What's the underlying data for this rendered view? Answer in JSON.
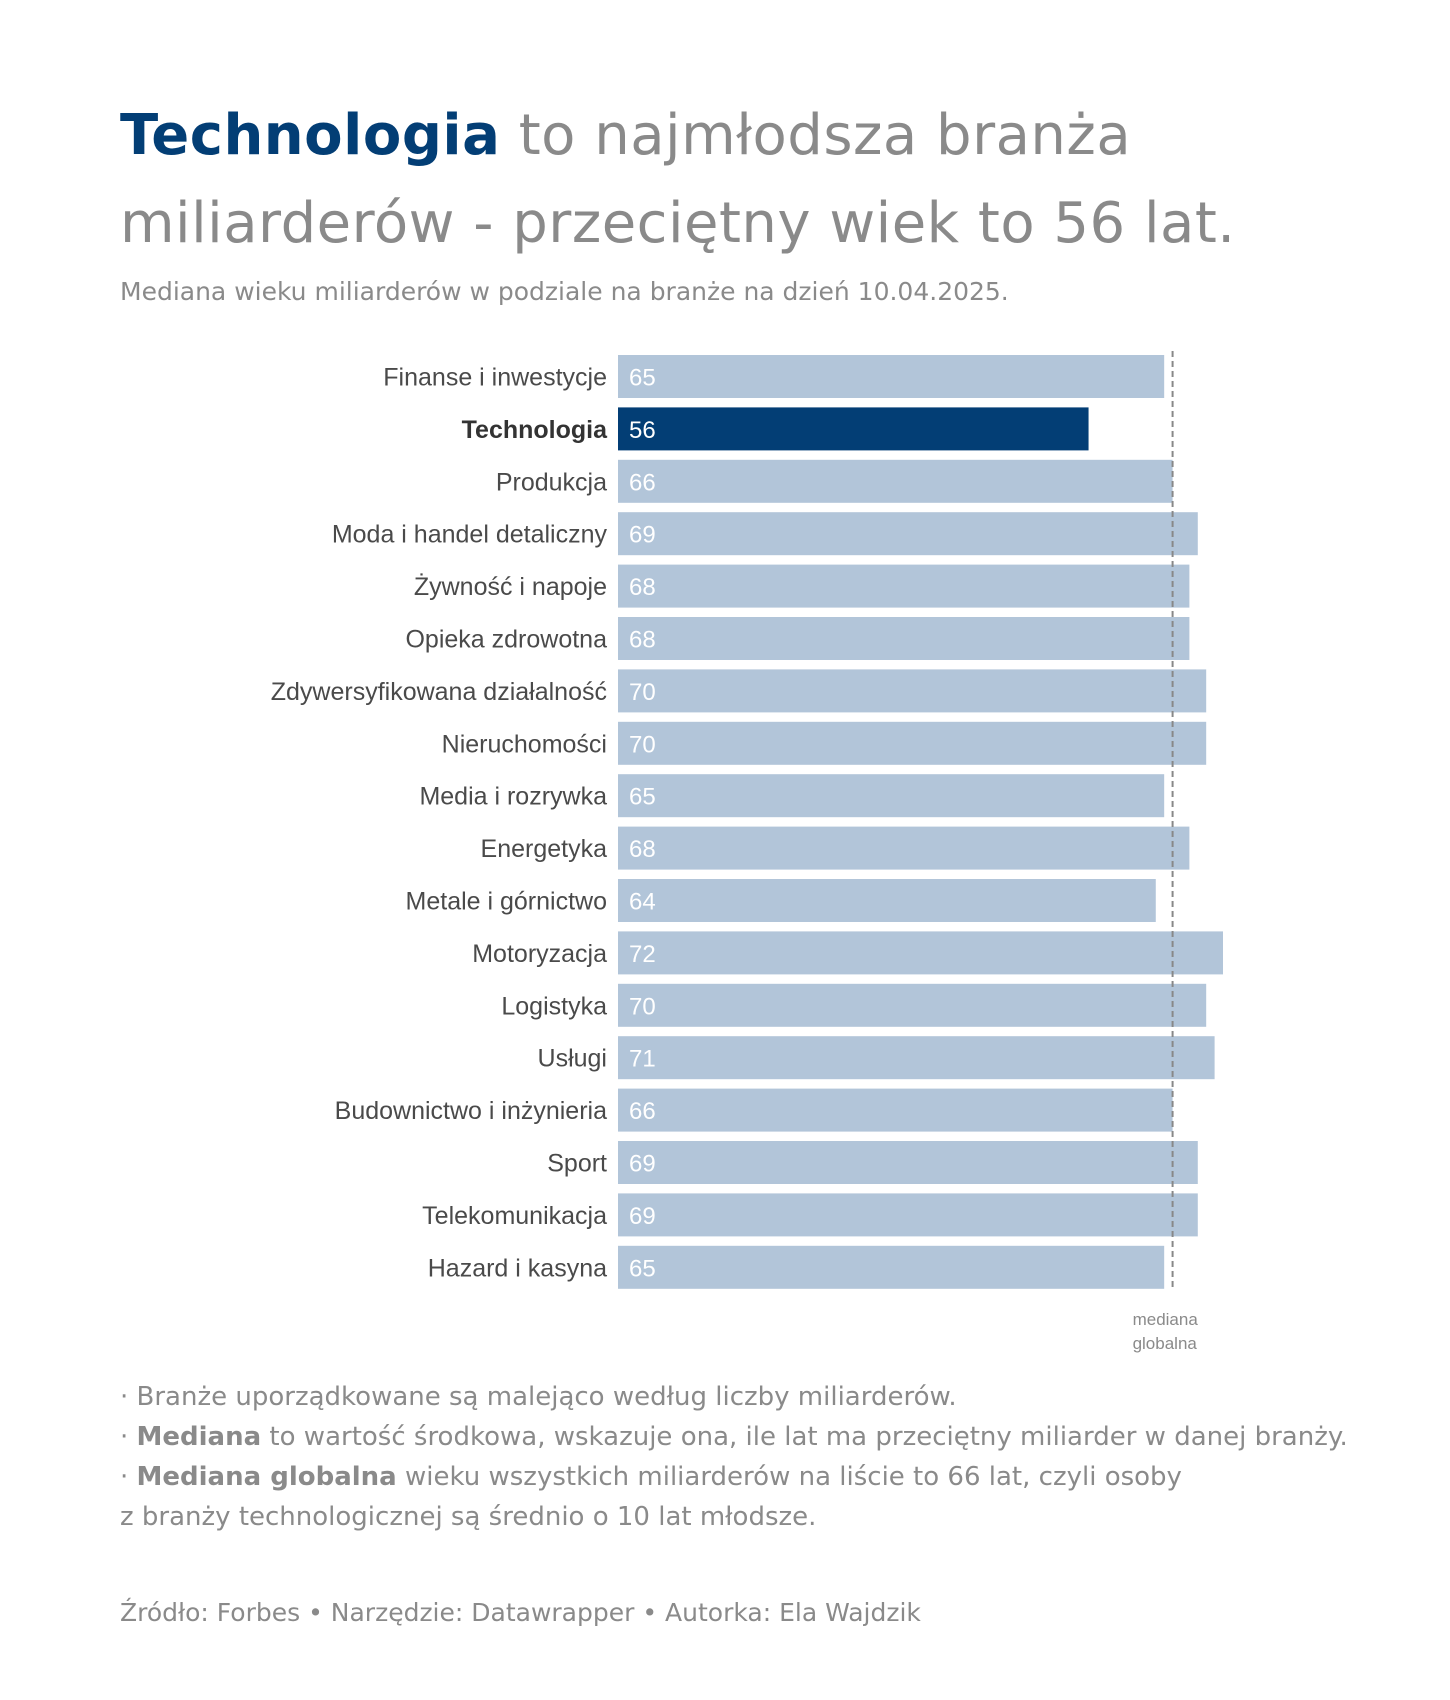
{
  "header": {
    "title_highlight": "Technologia",
    "title_rest": " to najmłodsza branża miliarderów - przeciętny wiek to 56 lat.",
    "subtitle": "Mediana wieku miliarderów w podziale na branże na dzień 10.04.2025."
  },
  "colors": {
    "highlight": "#033e75",
    "bar": "#b2c5d9",
    "reference_line": "#888888"
  },
  "chart_data": {
    "type": "bar",
    "orientation": "horizontal",
    "categories": [
      "Finanse i inwestycje",
      "Technologia",
      "Produkcja",
      "Moda i handel detaliczny",
      "Żywność i napoje",
      "Opieka zdrowotna",
      "Zdywersyfikowana działalność",
      "Nieruchomości",
      "Media i rozrywka",
      "Energetyka",
      "Metale i górnictwo",
      "Motoryzacja",
      "Logistyka",
      "Usługi",
      "Budownictwo i inżynieria",
      "Sport",
      "Telekomunikacja",
      "Hazard i kasyna"
    ],
    "values": [
      65,
      56,
      66,
      69,
      68,
      68,
      70,
      70,
      65,
      68,
      64,
      72,
      70,
      71,
      66,
      69,
      69,
      65
    ],
    "highlighted_category": "Technologia",
    "xlim": [
      0,
      72
    ],
    "grid": false,
    "reference_line": {
      "value": 66,
      "label_line1": "mediana",
      "label_line2": "globalna"
    }
  },
  "notes": {
    "n1": "· Branże uporządkowane są malejąco według liczby miliarderów.",
    "n2_prefix": "· ",
    "n2_bold": "Mediana",
    "n2_rest": " to wartość środkowa, wskazuje ona, ile lat ma przeciętny miliarder w danej branży.",
    "n3_prefix": "· ",
    "n3_bold": "Mediana globalna",
    "n3_rest1": " wieku wszystkich miliarderów na liście to 66 lat, czyli osoby",
    "n3_rest2": "z branży technologicznej są średnio o 10 lat młodsze."
  },
  "footer": {
    "source": "Źródło: Forbes • Narzędzie: Datawrapper • Autorka: Ela Wajdzik"
  }
}
